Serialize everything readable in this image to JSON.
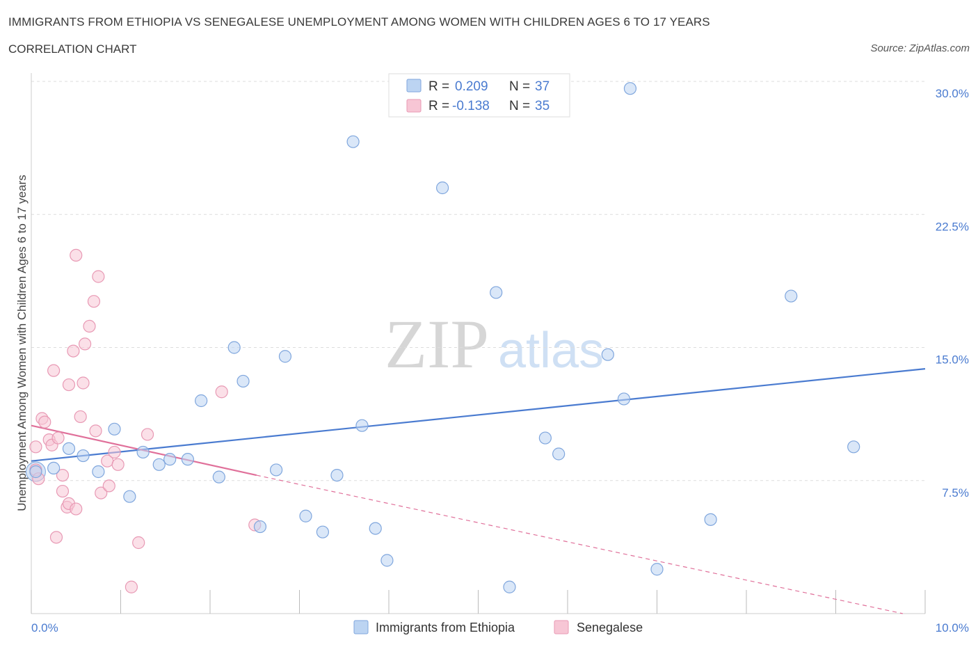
{
  "header": {
    "title": "IMMIGRANTS FROM ETHIOPIA VS SENEGALESE UNEMPLOYMENT AMONG WOMEN WITH CHILDREN AGES 6 TO 17 YEARS",
    "subtitle": "CORRELATION CHART",
    "source": "Source: ZipAtlas.com"
  },
  "watermark": {
    "zip": "ZIP",
    "atlas": "atlas"
  },
  "colors": {
    "blue": "#4a7bd0",
    "blue_fill": "#bcd4f2",
    "blue_stroke": "#7fa6dd",
    "pink": "#e0709a",
    "pink_fill": "#f7c6d5",
    "pink_stroke": "#e899b4",
    "grid": "#dddddd"
  },
  "legend": {
    "rows": [
      {
        "r_label": "R =",
        "r_value": "0.209",
        "n_label": "N =",
        "n_value": "37",
        "color": "blue"
      },
      {
        "r_label": "R =",
        "r_value": "-0.138",
        "n_label": "N =",
        "n_value": "35",
        "color": "pink"
      }
    ]
  },
  "bottom_legend": [
    "Immigrants from Ethiopia",
    "Senegalese"
  ],
  "chart_data": {
    "type": "scatter",
    "title": "IMMIGRANTS FROM ETHIOPIA VS SENEGALESE UNEMPLOYMENT AMONG WOMEN WITH CHILDREN AGES 6 TO 17 YEARS",
    "xlabel": "",
    "ylabel": "Unemployment Among Women with Children Ages 6 to 17 years",
    "xlim": [
      0,
      10
    ],
    "ylim": [
      0,
      30
    ],
    "x_tick_labels": [
      "0.0%",
      "10.0%"
    ],
    "y_ticks": [
      7.5,
      15.0,
      22.5,
      30.0
    ],
    "y_tick_labels": [
      "7.5%",
      "15.0%",
      "22.5%",
      "30.0%"
    ],
    "grid": true,
    "legend_position": "top-center",
    "series": [
      {
        "name": "Immigrants from Ethiopia",
        "color": "blue",
        "trend": {
          "x": [
            0.0,
            10.0
          ],
          "y": [
            8.6,
            13.8
          ]
        },
        "points": [
          [
            0.05,
            8.0
          ],
          [
            0.25,
            8.2
          ],
          [
            0.42,
            9.3
          ],
          [
            0.58,
            8.9
          ],
          [
            0.75,
            8.0
          ],
          [
            0.93,
            10.4
          ],
          [
            1.1,
            6.6
          ],
          [
            1.25,
            9.1
          ],
          [
            1.43,
            8.4
          ],
          [
            1.55,
            8.7
          ],
          [
            1.75,
            8.7
          ],
          [
            1.9,
            12.0
          ],
          [
            2.1,
            7.7
          ],
          [
            2.27,
            15.0
          ],
          [
            2.37,
            13.1
          ],
          [
            2.56,
            4.9
          ],
          [
            2.74,
            8.1
          ],
          [
            2.84,
            14.5
          ],
          [
            3.07,
            5.5
          ],
          [
            3.26,
            4.6
          ],
          [
            3.42,
            7.8
          ],
          [
            3.6,
            26.6
          ],
          [
            3.7,
            10.6
          ],
          [
            3.85,
            4.8
          ],
          [
            3.98,
            3.0
          ],
          [
            4.6,
            24.0
          ],
          [
            5.2,
            18.1
          ],
          [
            5.35,
            1.5
          ],
          [
            5.75,
            9.9
          ],
          [
            5.9,
            9.0
          ],
          [
            6.45,
            14.6
          ],
          [
            6.63,
            12.1
          ],
          [
            6.7,
            29.6
          ],
          [
            7.0,
            2.5
          ],
          [
            7.6,
            5.3
          ],
          [
            8.5,
            17.9
          ],
          [
            9.2,
            9.4
          ]
        ]
      },
      {
        "name": "Senegalese",
        "color": "pink",
        "trend_solid": {
          "x": [
            0.0,
            2.52
          ],
          "y": [
            10.6,
            7.8
          ]
        },
        "trend_dashed": {
          "x": [
            2.52,
            9.75
          ],
          "y": [
            7.8,
            0.0
          ]
        },
        "points": [
          [
            0.05,
            9.4
          ],
          [
            0.05,
            8.1
          ],
          [
            0.08,
            7.6
          ],
          [
            0.12,
            11.0
          ],
          [
            0.15,
            10.8
          ],
          [
            0.2,
            9.8
          ],
          [
            0.23,
            9.5
          ],
          [
            0.25,
            13.7
          ],
          [
            0.28,
            4.3
          ],
          [
            0.3,
            9.9
          ],
          [
            0.35,
            6.9
          ],
          [
            0.35,
            7.8
          ],
          [
            0.4,
            6.0
          ],
          [
            0.42,
            6.2
          ],
          [
            0.42,
            12.9
          ],
          [
            0.47,
            14.8
          ],
          [
            0.5,
            20.2
          ],
          [
            0.5,
            5.9
          ],
          [
            0.55,
            11.1
          ],
          [
            0.58,
            13.0
          ],
          [
            0.6,
            15.2
          ],
          [
            0.65,
            16.2
          ],
          [
            0.7,
            17.6
          ],
          [
            0.72,
            10.3
          ],
          [
            0.75,
            19.0
          ],
          [
            0.78,
            6.8
          ],
          [
            0.85,
            8.6
          ],
          [
            0.87,
            7.2
          ],
          [
            0.93,
            9.1
          ],
          [
            0.97,
            8.4
          ],
          [
            1.12,
            1.5
          ],
          [
            1.2,
            4.0
          ],
          [
            1.3,
            10.1
          ],
          [
            2.13,
            12.5
          ],
          [
            2.5,
            5.0
          ]
        ]
      }
    ]
  }
}
